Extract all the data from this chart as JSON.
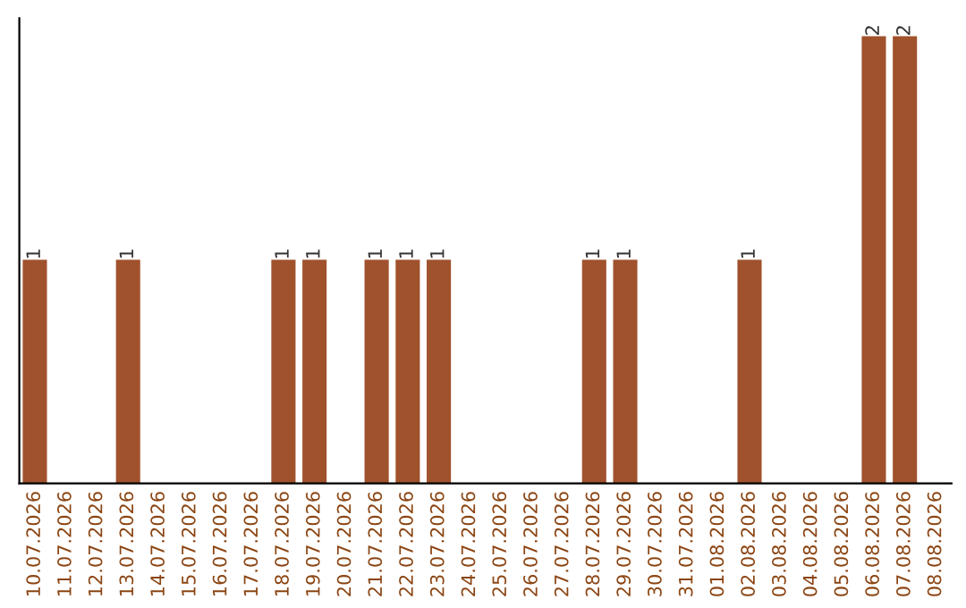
{
  "chart_data": {
    "type": "bar",
    "categories": [
      "10.07.2026",
      "11.07.2026",
      "12.07.2026",
      "13.07.2026",
      "14.07.2026",
      "15.07.2026",
      "16.07.2026",
      "17.07.2026",
      "18.07.2026",
      "19.07.2026",
      "20.07.2026",
      "21.07.2026",
      "22.07.2026",
      "23.07.2026",
      "24.07.2026",
      "25.07.2026",
      "26.07.2026",
      "27.07.2026",
      "28.07.2026",
      "29.07.2026",
      "30.07.2026",
      "31.07.2026",
      "01.08.2026",
      "02.08.2026",
      "03.08.2026",
      "04.08.2026",
      "05.08.2026",
      "06.08.2026",
      "07.08.2026",
      "08.08.2026"
    ],
    "values": [
      1,
      0,
      0,
      1,
      0,
      0,
      0,
      0,
      1,
      1,
      0,
      1,
      1,
      1,
      0,
      0,
      0,
      0,
      1,
      1,
      0,
      0,
      0,
      1,
      0,
      0,
      0,
      2,
      2,
      0
    ],
    "value_labels": [
      "1",
      null,
      null,
      "1",
      null,
      null,
      null,
      null,
      "1",
      "1",
      null,
      "1",
      "1",
      "1",
      null,
      null,
      null,
      null,
      "1",
      "1",
      null,
      null,
      null,
      "1",
      null,
      null,
      null,
      "2",
      "2",
      null
    ],
    "color": "#a0522d",
    "tick_labels": "x",
    "grid": false,
    "legend": false
  }
}
